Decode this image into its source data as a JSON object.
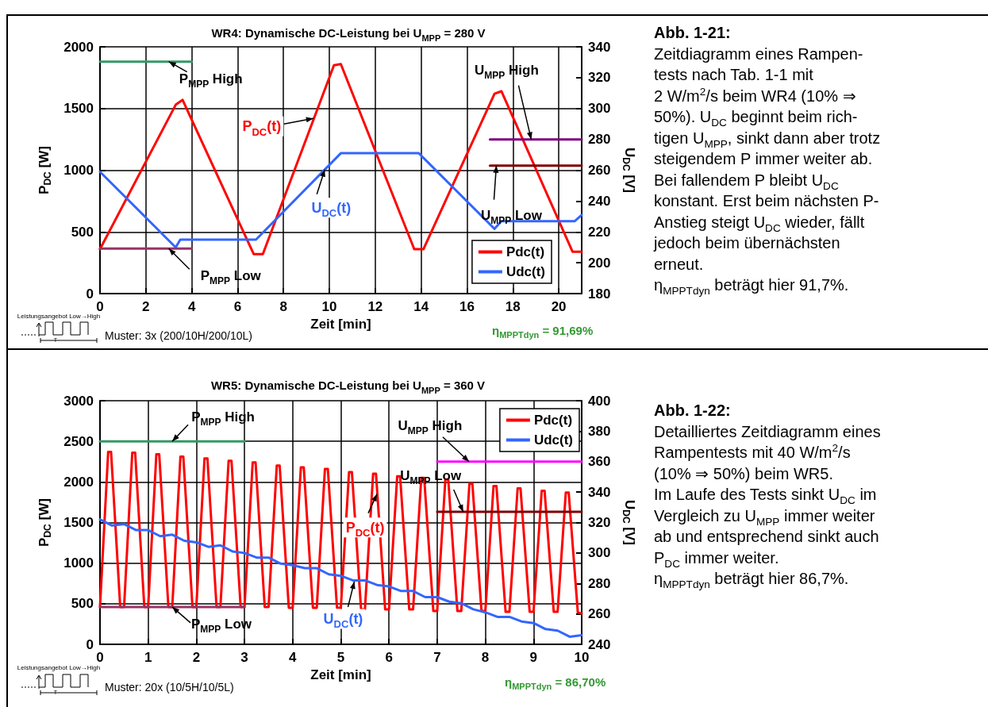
{
  "chart_data": [
    {
      "type": "line",
      "title": "WR4: Dynamische DC-Leistung bei U$_{MPP}$ = 280 V",
      "xlabel": "Zeit [min]",
      "ylabel": "P$_{DC}$ [W]",
      "y2label": "U$_{DC}$ [V]",
      "xlim": [
        0,
        21
      ],
      "xticks": [
        0,
        2,
        4,
        6,
        8,
        10,
        12,
        14,
        16,
        18,
        20
      ],
      "ylim": [
        0,
        2000
      ],
      "yticks": [
        0,
        500,
        1000,
        1500,
        2000
      ],
      "y2lim": [
        180,
        340
      ],
      "y2ticks": [
        180,
        200,
        220,
        240,
        260,
        280,
        300,
        320,
        340
      ],
      "grid": true,
      "legend": "bottom right",
      "marker": "none",
      "series": [
        {
          "name": "Pdc(t)",
          "color": "#ff0000",
          "x": [
            0,
            3.3,
            3.6,
            6.7,
            7.1,
            10.2,
            10.5,
            13.7,
            14.1,
            17.2,
            17.5,
            20.6,
            21
          ],
          "values": [
            360,
            1530,
            1570,
            320,
            320,
            1850,
            1860,
            360,
            360,
            1620,
            1640,
            340,
            340
          ]
        },
        {
          "name": "Udc(t)",
          "color": "#3366ff",
          "axis": "y2",
          "x": [
            0,
            3.3,
            3.5,
            6.8,
            10.5,
            13.9,
            17.2,
            17.5,
            20.7,
            21
          ],
          "values": [
            259,
            210,
            215,
            215,
            271,
            271,
            222,
            227,
            227,
            231
          ]
        },
        {
          "name": "P$_{MPP}$ High",
          "color": "#339966",
          "x": [
            0,
            4
          ],
          "values": [
            1880,
            1880
          ]
        },
        {
          "name": "P$_{MPP}$ Low",
          "color": "#993366",
          "x": [
            0,
            4
          ],
          "values": [
            365,
            365
          ]
        },
        {
          "name": "U$_{MPP}$ High",
          "color": "#800080",
          "axis": "y2",
          "x": [
            17,
            21
          ],
          "values": [
            280,
            280
          ]
        },
        {
          "name": "U$_{MPP}$ Low",
          "color": "#800000",
          "axis": "y2",
          "x": [
            17,
            21
          ],
          "values": [
            263,
            263
          ]
        }
      ],
      "annotations": [
        {
          "text": "P$_{DC}$(t)",
          "x": 9.3,
          "y": 1420
        },
        {
          "text": "U$_{DC}$(t)",
          "x": 9.8,
          "y": 1005
        },
        "Leistungsangebot Low→High",
        "T",
        "Muster: 3x (200/10H/200/10L)",
        "η$_{MPPTdyn}$ = 91,69%"
      ]
    },
    {
      "type": "other",
      "title": "Abb. 1-21:",
      "annotations": [
        "Zeitdiagramm eines Rampen-",
        "tests nach Tab. 1-1 mit",
        "2 W/m$^{2}$/s beim WR4 (10% ⇒",
        "50%). U$_{DC}$ beginnt beim rich-",
        "tigen U$_{MPP}$, sinkt dann aber trotz",
        "steigendem P immer weiter ab.",
        "Bei fallendem P bleibt U$_{DC}$",
        "konstant. Erst beim nächsten P-",
        "Anstieg steigt U$_{DC}$ wieder, fällt",
        "jedoch beim übernächsten",
        "erneut.",
        "η$_{MPPTdyn}$ beträgt hier 91,7%."
      ]
    },
    {
      "type": "line",
      "title": "WR5: Dynamische DC-Leistung bei U$_{MPP}$ = 360 V",
      "xlabel": "Zeit [min]",
      "ylabel": "P$_{DC}$ [W]",
      "y2label": "U$_{DC}$ [V]",
      "xlim": [
        0,
        10
      ],
      "xticks": [
        0,
        1,
        2,
        3,
        4,
        5,
        6,
        7,
        8,
        9,
        10
      ],
      "ylim": [
        0,
        3000
      ],
      "yticks": [
        0,
        500,
        1000,
        1500,
        2000,
        2500,
        3000
      ],
      "y2lim": [
        240,
        400
      ],
      "y2ticks": [
        240,
        260,
        280,
        300,
        320,
        340,
        360,
        380,
        400
      ],
      "grid": true,
      "legend": "top right",
      "marker": "none",
      "series": [
        {
          "name": "Pdc(t)",
          "color": "#ff0000",
          "x": [
            0,
            0.17,
            0.23,
            0.42,
            0.5,
            0.67,
            0.73,
            0.92,
            1,
            1.17,
            1.23,
            1.42,
            1.5,
            1.67,
            1.73,
            1.92,
            2,
            2.17,
            2.23,
            2.42,
            2.5,
            2.67,
            2.73,
            2.92,
            3,
            3.17,
            3.23,
            3.42,
            3.5,
            3.67,
            3.73,
            3.92,
            4,
            4.17,
            4.23,
            4.42,
            4.5,
            4.67,
            4.73,
            4.92,
            5,
            5.17,
            5.23,
            5.42,
            5.5,
            5.67,
            5.73,
            5.92,
            6,
            6.17,
            6.23,
            6.42,
            6.5,
            6.67,
            6.73,
            6.92,
            7,
            7.17,
            7.23,
            7.42,
            7.5,
            7.67,
            7.73,
            7.92,
            8,
            8.17,
            8.23,
            8.42,
            8.5,
            8.67,
            8.73,
            8.92,
            9,
            9.17,
            9.23,
            9.42,
            9.5,
            9.67,
            9.73,
            9.92,
            10
          ],
          "values": [
            460,
            2370,
            2370,
            460,
            460,
            2360,
            2360,
            460,
            460,
            2340,
            2340,
            460,
            460,
            2310,
            2310,
            460,
            460,
            2290,
            2290,
            460,
            460,
            2260,
            2260,
            460,
            460,
            2240,
            2240,
            460,
            460,
            2200,
            2200,
            450,
            450,
            2180,
            2180,
            450,
            450,
            2160,
            2160,
            450,
            450,
            2120,
            2120,
            430,
            430,
            2100,
            2100,
            430,
            430,
            2070,
            2070,
            430,
            430,
            2050,
            2050,
            410,
            410,
            2030,
            2030,
            410,
            410,
            1980,
            1980,
            410,
            410,
            1950,
            1950,
            400,
            400,
            1920,
            1920,
            400,
            400,
            1890,
            1890,
            400,
            400,
            1870,
            1870,
            390,
            380
          ]
        },
        {
          "name": "Udc(t)",
          "color": "#3366ff",
          "axis": "y2",
          "x": [
            0,
            0.25,
            0.5,
            0.75,
            1,
            1.25,
            1.5,
            1.75,
            2,
            2.25,
            2.5,
            2.75,
            3,
            3.25,
            3.5,
            3.75,
            4,
            4.25,
            4.5,
            4.75,
            5,
            5.25,
            5.5,
            5.75,
            6,
            6.25,
            6.5,
            6.75,
            7,
            7.25,
            7.5,
            7.75,
            8,
            8.25,
            8.5,
            8.75,
            9,
            9.25,
            9.5,
            9.75,
            10
          ],
          "values": [
            322,
            318,
            319,
            315,
            315,
            311,
            312,
            308,
            307,
            304,
            305,
            301,
            300,
            297,
            297,
            293,
            292,
            290,
            290,
            286,
            285,
            282,
            282,
            279,
            278,
            275,
            275,
            271,
            271,
            268,
            267,
            263,
            261,
            258,
            258,
            255,
            254,
            250,
            249,
            245,
            246
          ]
        },
        {
          "name": "P$_{MPP}$ High",
          "color": "#339966",
          "x": [
            0,
            3
          ],
          "values": [
            2500,
            2500
          ]
        },
        {
          "name": "P$_{MPP}$ Low",
          "color": "#993366",
          "x": [
            0,
            3
          ],
          "values": [
            460,
            460
          ]
        },
        {
          "name": "U$_{MPP}$ High",
          "color": "#ff00ff",
          "axis": "y2",
          "x": [
            7,
            10
          ],
          "values": [
            360,
            360
          ]
        },
        {
          "name": "U$_{MPP}$ Low",
          "color": "#800000",
          "axis": "y2",
          "x": [
            7,
            10
          ],
          "values": [
            327,
            327
          ]
        }
      ],
      "annotations": [
        {
          "text": "P$_{DC}$(t)",
          "x": 5.75,
          "y": 1850
        },
        {
          "text": "U$_{DC}$(t)",
          "x": 5.28,
          "y": 772
        },
        "Leistungsangebot Low→High",
        "T",
        "Muster: 20x (10/5H/10/5L)",
        "η$_{MPPTdyn}$ = 86,70%"
      ]
    },
    {
      "type": "other",
      "title": "Abb. 1-22:",
      "annotations": [
        "Detailliertes Zeitdiagramm eines",
        "Rampentests mit 40 W/m$^{2}$/s",
        "(10% ⇒ 50%) beim WR5.",
        "Im Laufe des Tests sinkt U$_{DC}$ im",
        "Vergleich zu U$_{MPP}$ immer weiter",
        "ab und entsprechend sinkt auch",
        "P$_{DC}$ immer weiter.",
        "η$_{MPPTdyn}$ beträgt hier 86,7%."
      ]
    }
  ]
}
